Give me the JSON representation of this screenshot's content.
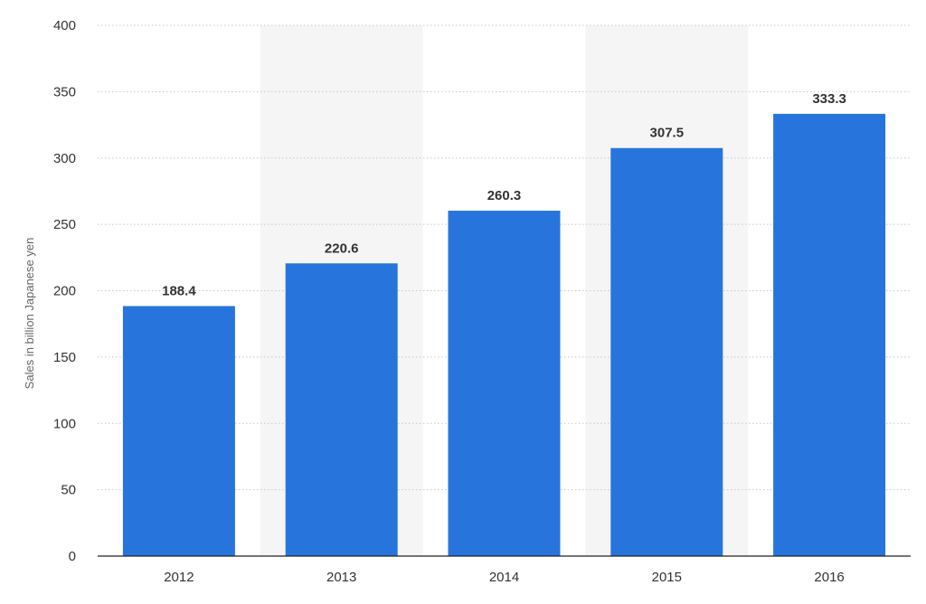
{
  "chart_data": {
    "type": "bar",
    "title": "",
    "xlabel": "",
    "ylabel": "Sales in billion Japanese yen",
    "categories": [
      "2012",
      "2013",
      "2014",
      "2015",
      "2016"
    ],
    "values": [
      188.4,
      220.6,
      260.3,
      307.5,
      333.3
    ],
    "value_labels": [
      "188.4",
      "220.6",
      "260.3",
      "307.5",
      "333.3"
    ],
    "ylim": [
      0,
      400
    ],
    "yticks": [
      0,
      50,
      100,
      150,
      200,
      250,
      300,
      350,
      400
    ],
    "grid": true,
    "legend": "none",
    "bar_color": "#2775dc",
    "band_color": "#f5f5f5"
  }
}
